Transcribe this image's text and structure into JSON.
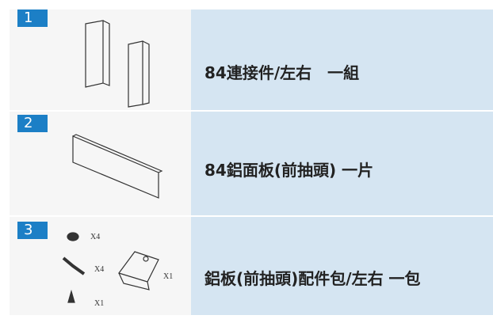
{
  "items": [
    {
      "number": "1",
      "label": "84連接件/左右　一組"
    },
    {
      "number": "2",
      "label": "84鋁面板(前抽頭) 一片"
    },
    {
      "number": "3",
      "label": "鋁板(前抽頭)配件包/左右 一包",
      "parts": [
        "X4",
        "X4",
        "X1",
        "X1"
      ]
    }
  ]
}
